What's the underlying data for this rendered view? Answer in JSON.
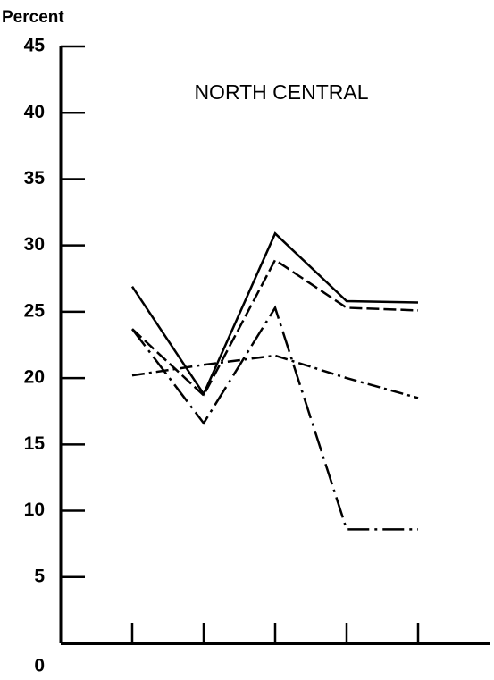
{
  "chart_data": {
    "type": "line",
    "title": "NORTH CENTRAL",
    "y_label": "Percent",
    "categories": [
      null,
      null,
      null,
      null,
      null
    ],
    "series": [
      {
        "color": "#000000",
        "dash": "solid",
        "values": [
          26.9,
          18.8,
          30.9,
          25.8,
          25.7
        ]
      },
      {
        "color": "#000000",
        "dash": "dashed",
        "values": [
          23.7,
          18.7,
          28.9,
          25.3,
          25.1
        ]
      },
      {
        "color": "#000000",
        "dash": "dashdot",
        "values": [
          20.2,
          21.0,
          21.7,
          20.0,
          18.5
        ]
      },
      {
        "color": "#000000",
        "dash": "longdashdot",
        "values": [
          23.7,
          16.6,
          25.3,
          8.6,
          8.6
        ]
      }
    ],
    "ylim": [
      0,
      45
    ],
    "yticks": [
      0,
      5,
      10,
      15,
      20,
      25,
      30,
      35,
      40,
      45
    ],
    "grid": false
  }
}
